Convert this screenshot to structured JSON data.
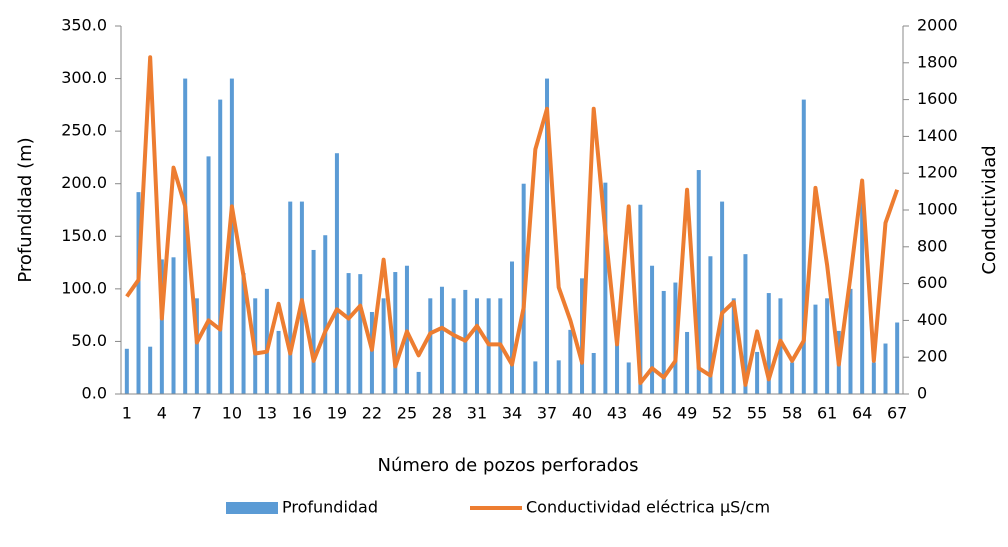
{
  "chart_data": {
    "type": "bar_line",
    "xlabel": "Número de pozos perforados",
    "ylabel": "Profundidad (m)",
    "y2label": "Conductividad",
    "categories": [
      1,
      null,
      null,
      4,
      null,
      null,
      7,
      null,
      null,
      10,
      null,
      null,
      13,
      null,
      null,
      16,
      null,
      null,
      19,
      null,
      null,
      22,
      null,
      null,
      25,
      null,
      null,
      28,
      null,
      null,
      31,
      null,
      null,
      34,
      null,
      null,
      37,
      null,
      null,
      40,
      null,
      null,
      43,
      null,
      null,
      46,
      null,
      null,
      49,
      null,
      null,
      52,
      null,
      null,
      55,
      null,
      null,
      58,
      null,
      null,
      61,
      null,
      null,
      64,
      null,
      null,
      67
    ],
    "series": [
      {
        "name": "Profundidad",
        "color": "#5b9bd5",
        "kind": "bar",
        "values": [
          43,
          192,
          45,
          128,
          130,
          300,
          91,
          226,
          280,
          300,
          115,
          91,
          100,
          60,
          183,
          183,
          137,
          151,
          229,
          115,
          114,
          78,
          91,
          116,
          122,
          21,
          91,
          102,
          91,
          99,
          91,
          91,
          91,
          126,
          200,
          31,
          300,
          32,
          61,
          110,
          39,
          201,
          70,
          30,
          180,
          122,
          98,
          106,
          59,
          213,
          131,
          183,
          91,
          133,
          40,
          96,
          91,
          30,
          280,
          85,
          91,
          60,
          100,
          190,
          30,
          48,
          68
        ]
      },
      {
        "name": "Conductividad eléctrica µS/cm",
        "color": "#ed7d31",
        "kind": "line",
        "axis": "y2",
        "values": [
          530,
          620,
          1830,
          410,
          1230,
          1020,
          280,
          400,
          350,
          1020,
          640,
          220,
          230,
          490,
          220,
          510,
          180,
          340,
          460,
          410,
          480,
          240,
          730,
          150,
          340,
          210,
          330,
          360,
          320,
          290,
          370,
          270,
          270,
          160,
          470,
          1330,
          1550,
          580,
          400,
          170,
          1550,
          880,
          270,
          1020,
          60,
          140,
          90,
          180,
          1110,
          140,
          100,
          440,
          500,
          50,
          340,
          80,
          290,
          180,
          290,
          1120,
          700,
          160,
          640,
          1160,
          180,
          930,
          1110
        ]
      }
    ],
    "ylim": [
      0,
      350
    ],
    "yticks": [
      {
        "value": 0,
        "label": "0.0"
      },
      {
        "value": 50,
        "label": "50.0"
      },
      {
        "value": 100,
        "label": "100.0"
      },
      {
        "value": 150,
        "label": "150.0"
      },
      {
        "value": 200,
        "label": "200.0"
      },
      {
        "value": 250,
        "label": "250.0"
      },
      {
        "value": 300,
        "label": "300.0"
      },
      {
        "value": 350,
        "label": "350.0"
      }
    ],
    "y2lim": [
      0,
      2000
    ],
    "y2ticks": [
      0,
      200,
      400,
      600,
      800,
      1000,
      1200,
      1400,
      1600,
      1800,
      2000
    ],
    "legend": "bottom"
  }
}
